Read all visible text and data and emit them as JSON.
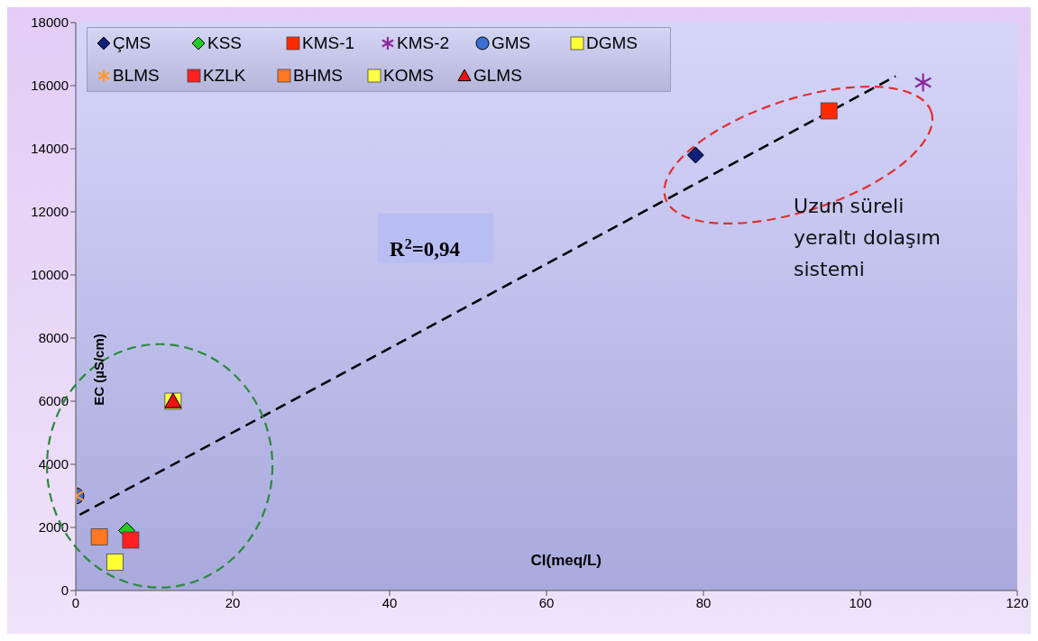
{
  "chart_data": {
    "type": "scatter",
    "xlabel": "Cl(meq/L)",
    "ylabel": "EC (µS/cm)",
    "xlim": [
      0,
      120
    ],
    "xticks": [
      0,
      20,
      40,
      60,
      80,
      100,
      120
    ],
    "ylim": [
      0,
      18000
    ],
    "yticks": [
      0,
      2000,
      4000,
      6000,
      8000,
      10000,
      12000,
      14000,
      16000,
      18000
    ],
    "legend": "top left",
    "annotations": [
      "R$^{2}$=0,94",
      "Uzun süreli yeraltı dolaşım sistemi"
    ],
    "series": [
      {
        "name": "ÇMS",
        "color": "#10207a",
        "marker": "diamond",
        "x": [
          79
        ],
        "values": [
          13800
        ]
      },
      {
        "name": "KSS",
        "color": "#22cc22",
        "marker": "diamond",
        "x": [
          6.5
        ],
        "values": [
          1900
        ]
      },
      {
        "name": "KMS-1",
        "color": "#ff2a00",
        "marker": "square",
        "x": [
          96
        ],
        "values": [
          15200
        ]
      },
      {
        "name": "KMS-2",
        "color": "#8a2a9a",
        "marker": "cross",
        "x": [
          108
        ],
        "values": [
          16100
        ]
      },
      {
        "name": "GMS",
        "color": "#3b6fd6",
        "marker": "circle",
        "x": [
          0
        ],
        "values": [
          3000
        ]
      },
      {
        "name": "DGMS",
        "color": "#ffff33",
        "marker": "square",
        "x": [
          5
        ],
        "values": [
          900
        ]
      },
      {
        "name": "BLMS",
        "color": "#ff9933",
        "marker": "cross",
        "x": [
          0
        ],
        "values": [
          3000
        ]
      },
      {
        "name": "KZLK",
        "color": "#ff2020",
        "marker": "square",
        "x": [
          7
        ],
        "values": [
          1600
        ]
      },
      {
        "name": "BHMS",
        "color": "#ff7722",
        "marker": "square",
        "x": [
          3
        ],
        "values": [
          1700
        ]
      },
      {
        "name": "KOMS",
        "color": "#ffff44",
        "marker": "square",
        "x": [
          12.4
        ],
        "values": [
          6000
        ]
      },
      {
        "name": "GLMS",
        "color": "#ee1111",
        "marker": "triangle",
        "x": [
          12.4
        ],
        "values": [
          6000
        ]
      },
      {
        "type": "line",
        "color": "#000000",
        "line_style": "dashed",
        "marker": "none",
        "x": [
          0.5,
          104.5
        ],
        "values": [
          2400,
          16300
        ]
      }
    ]
  }
}
